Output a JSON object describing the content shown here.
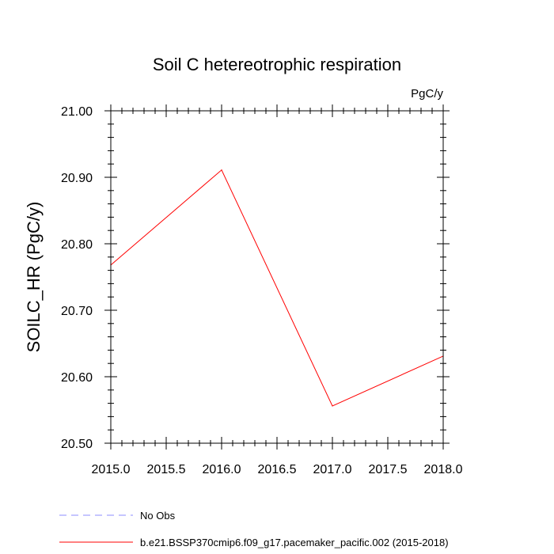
{
  "chart_data": {
    "type": "line",
    "title": "Soil C hetereotrophic respiration",
    "units_label": "PgC/y",
    "xlabel": "",
    "ylabel": "SOILC_HR  (PgC/y)",
    "xlim": [
      2015.0,
      2018.0
    ],
    "ylim": [
      20.5,
      21.0
    ],
    "x_ticks": [
      2015.0,
      2015.5,
      2016.0,
      2016.5,
      2017.0,
      2017.5,
      2018.0
    ],
    "x_tick_labels": [
      "2015.0",
      "2015.5",
      "2016.0",
      "2016.5",
      "2017.0",
      "2017.5",
      "2018.0"
    ],
    "y_ticks": [
      20.5,
      20.6,
      20.7,
      20.8,
      20.9,
      21.0
    ],
    "y_tick_labels": [
      "20.50",
      "20.60",
      "20.70",
      "20.80",
      "20.90",
      "21.00"
    ],
    "x_minor_step": 0.1,
    "y_minor_step": 0.02,
    "series": [
      {
        "name": "b.e21.BSSP370cmip6.f09_g17.pacemaker_pacific.002 (2015-2018)",
        "color": "#ff0000",
        "dash": "solid",
        "x": [
          2015.0,
          2016.0,
          2017.0,
          2018.0
        ],
        "y": [
          20.768,
          20.911,
          20.556,
          20.631
        ]
      },
      {
        "name": "No Obs",
        "color": "#8c8cff",
        "dash": "dashed",
        "x": [],
        "y": []
      }
    ],
    "legend": [
      {
        "label": "No Obs",
        "color": "#8c8cff",
        "dash": "dashed"
      },
      {
        "label": "b.e21.BSSP370cmip6.f09_g17.pacemaker_pacific.002 (2015-2018)",
        "color": "#ff0000",
        "dash": "solid"
      }
    ]
  }
}
